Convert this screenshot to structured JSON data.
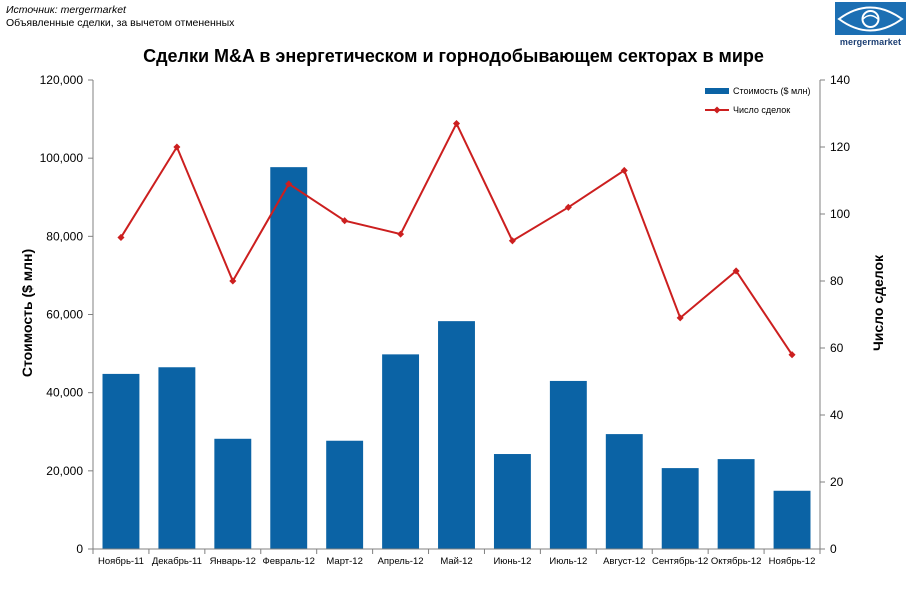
{
  "source": {
    "line1": "Источник: mergermarket",
    "line2": "Объявленные сделки, за вычетом отмененных"
  },
  "logo": {
    "text": "mergermarket"
  },
  "chart_data": {
    "type": "bar",
    "title": "Сделки M&A в энергетическом и горнодобывающем секторах в мире",
    "categories": [
      "Ноябрь-11",
      "Декабрь-11",
      "Январь-12",
      "Февраль-12",
      "Март-12",
      "Апрель-12",
      "Май-12",
      "Июнь-12",
      "Июль-12",
      "Август-12",
      "Сентябрь-12",
      "Октябрь-12",
      "Ноябрь-12"
    ],
    "series": [
      {
        "name": "Стоимость ($ млн)",
        "type": "bar",
        "axis": "left",
        "color": "#0b63a5",
        "values": [
          44800,
          46500,
          28200,
          97700,
          27700,
          49800,
          58300,
          24300,
          43000,
          29400,
          20700,
          23000,
          14900
        ]
      },
      {
        "name": "Число сделок",
        "type": "line",
        "axis": "right",
        "color": "#cc1f1f",
        "values": [
          93,
          120,
          80,
          109,
          98,
          94,
          127,
          92,
          102,
          113,
          69,
          83,
          58
        ]
      }
    ],
    "ylabel": "Стоимость ($ млн)",
    "y2label": "Число сделок",
    "ylim": [
      0,
      120000
    ],
    "y2lim": [
      0,
      140
    ],
    "yticks": [
      "0",
      "20,000",
      "40,000",
      "60,000",
      "80,000",
      "100,000",
      "120,000"
    ],
    "y2ticks": [
      "0",
      "20",
      "40",
      "60",
      "80",
      "100",
      "120",
      "140"
    ],
    "grid": false,
    "legend": "top-right"
  }
}
